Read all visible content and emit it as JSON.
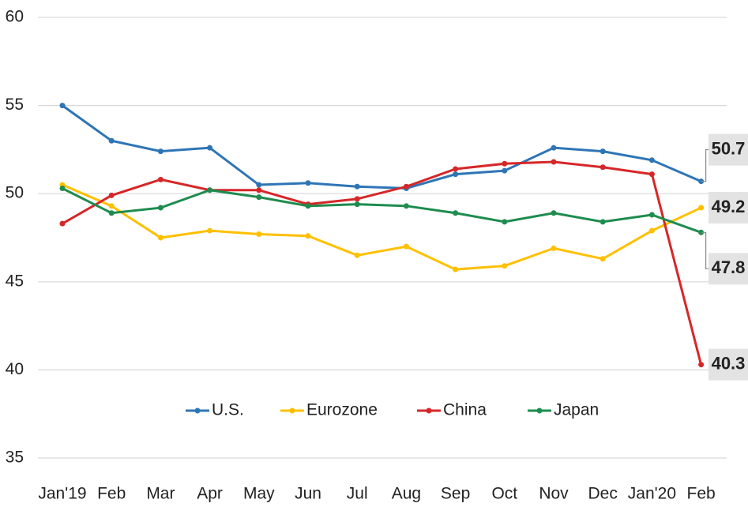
{
  "chart_data": {
    "type": "line",
    "categories": [
      "Jan'19",
      "Feb",
      "Mar",
      "Apr",
      "May",
      "Jun",
      "Jul",
      "Aug",
      "Sep",
      "Oct",
      "Nov",
      "Dec",
      "Jan'20",
      "Feb"
    ],
    "series": [
      {
        "name": "U.S.",
        "color": "#2e75b6",
        "values": [
          55.0,
          53.0,
          52.4,
          52.6,
          50.5,
          50.6,
          50.4,
          50.3,
          51.1,
          51.3,
          52.6,
          52.4,
          51.9,
          50.7
        ]
      },
      {
        "name": "Eurozone",
        "color": "#ffc000",
        "values": [
          50.5,
          49.3,
          47.5,
          47.9,
          47.7,
          47.6,
          46.5,
          47.0,
          45.7,
          45.9,
          46.9,
          46.3,
          47.9,
          49.2
        ]
      },
      {
        "name": "China",
        "color": "#d62728",
        "values": [
          48.3,
          49.9,
          50.8,
          50.2,
          50.2,
          49.4,
          49.7,
          50.4,
          51.4,
          51.7,
          51.8,
          51.5,
          51.1,
          40.3
        ]
      },
      {
        "name": "Japan",
        "color": "#1e8c4e",
        "values": [
          50.3,
          48.9,
          49.2,
          50.2,
          49.8,
          49.3,
          49.4,
          49.3,
          48.9,
          48.4,
          48.9,
          48.4,
          48.8,
          47.8
        ]
      }
    ],
    "ylim": [
      35,
      60
    ],
    "yticks": [
      35,
      40,
      45,
      50,
      55,
      60
    ],
    "grid": true,
    "legend": "bottom",
    "data_labels": "last"
  }
}
